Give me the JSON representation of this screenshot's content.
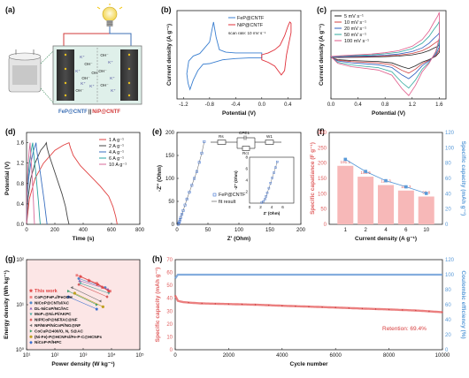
{
  "panels": {
    "a": {
      "label": "(a)",
      "ion_cation": "K⁺",
      "ion_anion": "OH⁻",
      "electrode_left": "FeP@CNTF",
      "electrode_sep": "||",
      "electrode_right": "NiP@CNTF",
      "colors": {
        "left": "#3c6fb5",
        "right": "#d23a3a"
      }
    },
    "b": {
      "label": "(b)",
      "xlabel": "Potential (V)",
      "ylabel": "Current density (A g⁻¹)",
      "annotation": "scan rate: 10 mV s⁻¹",
      "x_ticks": [
        "-1.2",
        "-0.8",
        "-0.4",
        "0.0",
        "0.4"
      ],
      "legend": [
        {
          "name": "FeP@CNTF",
          "color": "#3a7fd0"
        },
        {
          "name": "NiP@CNTF",
          "color": "#e0303a"
        }
      ]
    },
    "c": {
      "label": "(c)",
      "xlabel": "Potential (V)",
      "ylabel": "Current density (A g⁻¹)",
      "x_ticks": [
        "0.0",
        "0.4",
        "0.8",
        "1.2",
        "1.6"
      ],
      "legend": [
        {
          "name": "5 mV s⁻¹",
          "color": "#222222"
        },
        {
          "name": "10 mV s⁻¹",
          "color": "#d04040"
        },
        {
          "name": "20 mV s⁻¹",
          "color": "#2f5fbf"
        },
        {
          "name": "50 mV s⁻¹",
          "color": "#2fa99e"
        },
        {
          "name": "100 mV s⁻¹",
          "color": "#e05a8a"
        }
      ]
    },
    "d": {
      "label": "(d)",
      "xlabel": "Time (s)",
      "ylabel": "Potential (V)",
      "x_ticks": [
        "0",
        "200",
        "400",
        "600",
        "800"
      ],
      "y_ticks": [
        "0.0",
        "0.4",
        "0.8",
        "1.2",
        "1.6"
      ],
      "legend": [
        {
          "name": "1 A g⁻¹",
          "color": "#e04040"
        },
        {
          "name": "2 A g⁻¹",
          "color": "#444444"
        },
        {
          "name": "4 A g⁻¹",
          "color": "#3a6fc0"
        },
        {
          "name": "6 A g⁻¹",
          "color": "#2aa3a0"
        },
        {
          "name": "10 A g⁻¹",
          "color": "#d86a9a"
        }
      ]
    },
    "e": {
      "label": "(e)",
      "xlabel": "Z' (Ohm)",
      "ylabel": "-Z'' (Ohm)",
      "x_ticks": [
        "0",
        "50",
        "100",
        "150",
        "200"
      ],
      "y_ticks": [
        "0",
        "50",
        "100",
        "150",
        "200"
      ],
      "inset_xlabel": "Z' (Ohm)",
      "inset_ylabel": "-Z'' (Ohm)",
      "inset_ticks": [
        "2",
        "4",
        "6",
        "8"
      ],
      "inset_x_ticks": [
        "0",
        "2",
        "4",
        "6"
      ],
      "circuit": [
        "Rs",
        "CPE1",
        "W1",
        "Rct"
      ],
      "legend": [
        {
          "name": "FeP@CNTF",
          "color": "#3a6fd0"
        },
        {
          "name": "fit result",
          "color": "#777777"
        }
      ]
    },
    "f": {
      "label": "(f)",
      "xlabel": "Current density (A g⁻¹)",
      "ylabel_left": "Specific capatiance (F g⁻¹)",
      "ylabel_right": "Specific capacity (mAh g⁻¹)",
      "left_ticks": [
        "0",
        "50",
        "100",
        "150",
        "200",
        "250",
        "300"
      ],
      "right_ticks": [
        "0",
        "20",
        "40",
        "60",
        "80",
        "100",
        "120"
      ]
    },
    "g": {
      "label": "(g)",
      "xlabel": "Power density (W kg⁻¹)",
      "ylabel": "Energy density (Wh kg⁻¹)",
      "x_ticks": [
        "10¹",
        "10²",
        "10³",
        "10⁴",
        "10⁵"
      ],
      "y_ticks": [
        "10⁰",
        "10¹",
        "10²"
      ],
      "this_work": "This work",
      "legend": [
        {
          "name": "CoP@FeP₄//FeOOH",
          "color": "#ee7f7f",
          "shape": "square"
        },
        {
          "name": "NiCoP@CNTs//AC",
          "color": "#4e86c8",
          "shape": "circle"
        },
        {
          "name": "DL-NiCoP/NC//AC",
          "color": "#8a5fb8",
          "shape": "triangle"
        },
        {
          "name": "MoP₂@Ni₂P//AKPC",
          "color": "#48a8a0",
          "shape": "tri-down"
        },
        {
          "name": "NiP/CoP@NF//AC@NF",
          "color": "#d65a5a",
          "shape": "diamond"
        },
        {
          "name": "NF/MnP/NiCoP//NG@NF",
          "color": "#6a6a6a",
          "shape": "tri-left"
        },
        {
          "name": "CoCuP@400/O, N, S@AC",
          "color": "#3b9e6a",
          "shape": "tri-right"
        },
        {
          "name": "(Ni-Fe)-P@HCNFs//Fe-P-C@HCNFs",
          "color": "#c0a020",
          "shape": "hexagon"
        },
        {
          "name": "NiCoP-P//HPC",
          "color": "#3a6fd0",
          "shape": "pentagon"
        }
      ]
    },
    "h": {
      "label": "(h)",
      "xlabel": "Cycle number",
      "ylabel_left": "Specific capacity (mAh g⁻¹)",
      "ylabel_right": "Coulombic efficiency (%)",
      "x_ticks": [
        "0",
        "2000",
        "4000",
        "6000",
        "8000",
        "10000"
      ],
      "left_ticks": [
        "0",
        "10",
        "20",
        "30",
        "40",
        "50",
        "60",
        "70"
      ],
      "right_ticks": [
        "0",
        "20",
        "40",
        "60",
        "80",
        "100",
        "120"
      ],
      "retention": "Retention: 69.4%"
    }
  },
  "chart_data": [
    {
      "panel": "b",
      "type": "line",
      "xlabel": "Potential (V)",
      "ylabel": "Current density (A g⁻¹)",
      "xlim": [
        -1.3,
        0.6
      ],
      "ylim": [
        -70,
        70
      ],
      "series": [
        {
          "name": "FeP@CNTF",
          "color": "#3a7fd0",
          "x": [
            -1.15,
            -1.12,
            -1.05,
            -0.95,
            -0.8,
            -0.74,
            -0.7,
            -0.65,
            -0.55,
            -0.4,
            -0.2,
            0.0,
            0.0,
            -0.2,
            -0.4,
            -0.6,
            -0.8,
            -0.9,
            -0.98,
            -1.05,
            -1.1,
            -1.13,
            -1.15
          ],
          "y": [
            -30,
            -10,
            -2,
            2,
            20,
            52,
            28,
            8,
            4,
            3,
            3,
            3,
            -5,
            -5,
            -6,
            -8,
            -14,
            -15,
            -25,
            -40,
            -55,
            -45,
            -30
          ]
        },
        {
          "name": "NiP@CNTF",
          "color": "#e0303a",
          "x": [
            0.0,
            0.1,
            0.2,
            0.28,
            0.35,
            0.4,
            0.43,
            0.45,
            0.45,
            0.42,
            0.38,
            0.35,
            0.3,
            0.25,
            0.2,
            0.1,
            0.0,
            0.0
          ],
          "y": [
            0,
            3,
            8,
            15,
            30,
            45,
            52,
            50,
            35,
            20,
            0,
            -25,
            -32,
            -25,
            -18,
            -12,
            -8,
            0
          ]
        }
      ]
    },
    {
      "panel": "c",
      "type": "line",
      "xlabel": "Potential (V)",
      "ylabel": "Current density (A g⁻¹)",
      "xlim": [
        0.0,
        1.7
      ],
      "ylim": [
        -12,
        14
      ],
      "series": [
        {
          "name": "5 mV s⁻¹",
          "color": "#222222",
          "scale": 0.28
        },
        {
          "name": "10 mV s⁻¹",
          "color": "#d04040",
          "scale": 0.4
        },
        {
          "name": "20 mV s⁻¹",
          "color": "#2f5fbf",
          "scale": 0.55
        },
        {
          "name": "50 mV s⁻¹",
          "color": "#2fa99e",
          "scale": 0.8
        },
        {
          "name": "100 mV s⁻¹",
          "color": "#e05a8a",
          "scale": 1.0
        }
      ],
      "base_x": [
        0.0,
        0.2,
        0.4,
        0.6,
        0.8,
        1.0,
        1.2,
        1.35,
        1.45,
        1.52,
        1.58,
        1.6,
        1.6,
        1.55,
        1.45,
        1.35,
        1.25,
        1.15,
        1.05,
        0.9,
        0.7,
        0.5,
        0.3,
        0.1,
        0.0
      ],
      "base_y": [
        0.5,
        0.8,
        1.0,
        1.2,
        1.6,
        2.2,
        3.5,
        5.5,
        8,
        10.5,
        12.5,
        13.5,
        6,
        2,
        -1.5,
        -4,
        -8,
        -11,
        -9,
        -5,
        -3.5,
        -3,
        -2.5,
        -1.5,
        0.5
      ]
    },
    {
      "panel": "d",
      "type": "line",
      "xlabel": "Time (s)",
      "ylabel": "Potential (V)",
      "xlim": [
        0,
        800
      ],
      "ylim": [
        0.0,
        1.8
      ],
      "series": [
        {
          "name": "1 A g⁻¹",
          "color": "#e04040",
          "x": [
            0,
            20,
            60,
            120,
            200,
            260,
            300,
            310,
            330,
            380,
            450,
            520,
            580,
            610,
            630,
            640
          ],
          "y": [
            0.0,
            0.5,
            0.9,
            1.2,
            1.45,
            1.55,
            1.6,
            1.5,
            1.35,
            1.15,
            0.95,
            0.75,
            0.55,
            0.35,
            0.15,
            0.0
          ]
        },
        {
          "name": "2 A g⁻¹",
          "color": "#444444",
          "x": [
            0,
            10,
            30,
            60,
            100,
            130,
            140,
            145,
            160,
            190,
            220,
            250,
            275,
            290,
            300
          ],
          "y": [
            0.0,
            0.5,
            0.9,
            1.2,
            1.45,
            1.55,
            1.6,
            1.5,
            1.35,
            1.1,
            0.85,
            0.6,
            0.35,
            0.12,
            0.0
          ]
        },
        {
          "name": "4 A g⁻¹",
          "color": "#3a6fc0",
          "x": [
            0,
            5,
            15,
            30,
            50,
            62,
            67,
            70,
            80,
            95,
            110,
            125,
            138,
            145
          ],
          "y": [
            0.0,
            0.5,
            0.9,
            1.2,
            1.45,
            1.55,
            1.6,
            1.5,
            1.3,
            1.05,
            0.75,
            0.45,
            0.15,
            0.0
          ]
        },
        {
          "name": "6 A g⁻¹",
          "color": "#2aa3a0",
          "x": [
            0,
            4,
            10,
            20,
            33,
            40,
            44,
            46,
            54,
            64,
            74,
            84,
            92,
            97
          ],
          "y": [
            0.0,
            0.5,
            0.9,
            1.2,
            1.45,
            1.55,
            1.6,
            1.5,
            1.3,
            1.05,
            0.75,
            0.45,
            0.15,
            0.0
          ]
        },
        {
          "name": "10 A g⁻¹",
          "color": "#d86a9a",
          "x": [
            0,
            2,
            6,
            12,
            19,
            23,
            25,
            26,
            31,
            37,
            43,
            49,
            53,
            56
          ],
          "y": [
            0.0,
            0.5,
            0.9,
            1.2,
            1.45,
            1.55,
            1.6,
            1.5,
            1.3,
            1.05,
            0.75,
            0.45,
            0.15,
            0.0
          ]
        }
      ]
    },
    {
      "panel": "e",
      "type": "scatter",
      "xlabel": "Z' (Ohm)",
      "ylabel": "-Z'' (Ohm)",
      "xlim": [
        0,
        200
      ],
      "ylim": [
        0,
        200
      ],
      "series": [
        {
          "name": "FeP@CNTF",
          "color": "#3a6fd0",
          "x": [
            2,
            3,
            4,
            5,
            6,
            8,
            10,
            13,
            16,
            20,
            24,
            28,
            32,
            36,
            40,
            44
          ],
          "y": [
            0,
            3,
            6,
            10,
            15,
            22,
            30,
            42,
            55,
            70,
            85,
            100,
            115,
            135,
            155,
            180
          ]
        },
        {
          "name": "fit result",
          "color": "#777777",
          "x": [
            2,
            3,
            4,
            5,
            6,
            8,
            10,
            13,
            16,
            20,
            24,
            28,
            32,
            36,
            40,
            44
          ],
          "y": [
            0,
            3,
            6,
            10,
            15,
            22,
            30,
            42,
            55,
            70,
            85,
            100,
            115,
            135,
            155,
            180
          ]
        }
      ],
      "inset": {
        "xlim": [
          0,
          8
        ],
        "ylim": [
          0,
          8
        ],
        "x": [
          2.2,
          2.5,
          2.8,
          3.0,
          3.2,
          3.5,
          3.8,
          4.1,
          4.4,
          4.7,
          5.0
        ],
        "y": [
          0.1,
          0.3,
          0.7,
          1.2,
          1.8,
          2.6,
          3.5,
          4.4,
          5.3,
          6.2,
          7.2
        ]
      }
    },
    {
      "panel": "f",
      "type": "bar",
      "xlabel": "Current density (A g⁻¹)",
      "ylabel": "Specific capatiance (F g⁻¹)",
      "y2label": "Specific capacity (mAh g⁻¹)",
      "categories": [
        "1",
        "2",
        "4",
        "6",
        "10"
      ],
      "values": [
        191.1,
        155.5,
        128.3,
        110.3,
        90.8
      ],
      "ylim": [
        0,
        300
      ],
      "y2lim": [
        0,
        120
      ],
      "capacity_values": [
        84.9,
        69.1,
        57.0,
        49.0,
        40.4
      ]
    },
    {
      "panel": "g",
      "type": "scatter",
      "xlabel": "Power density (W kg⁻¹)",
      "ylabel": "Energy density (Wh kg⁻¹)",
      "xlim_log": [
        10,
        100000
      ],
      "ylim_log": [
        1,
        100
      ],
      "this_work": {
        "x": [
          800,
          1600,
          3200,
          4800,
          8000
        ],
        "y": [
          42.5,
          34.6,
          28.5,
          24.5,
          20.2
        ]
      },
      "series": [
        {
          "name": "CoP@FeP₄//FeOOH",
          "x": [
            600,
            3000,
            9000
          ],
          "y": [
            45,
            30,
            20
          ]
        },
        {
          "name": "NiCoP@CNTs//AC",
          "x": [
            700,
            6000
          ],
          "y": [
            38,
            24
          ]
        },
        {
          "name": "DL-NiCoP/NC//AC",
          "x": [
            750,
            7500
          ],
          "y": [
            34,
            22
          ]
        },
        {
          "name": "MoP₂@Ni₂P//AKPC",
          "x": [
            800,
            8000
          ],
          "y": [
            30,
            18
          ]
        },
        {
          "name": "NiP/CoP@NF//AC@NF",
          "x": [
            700,
            7000
          ],
          "y": [
            28,
            15
          ]
        },
        {
          "name": "NF/MnP/NiCoP//NG@NF",
          "x": [
            400,
            4000
          ],
          "y": [
            24,
            12
          ]
        },
        {
          "name": "CoCuP@400/O, N, S@AC",
          "x": [
            300,
            3000
          ],
          "y": [
            20,
            10
          ]
        },
        {
          "name": "(Ni-Fe)-P@HCNFs//Fe-P-C@HCNFs",
          "x": [
            500,
            5000
          ],
          "y": [
            18,
            9
          ]
        },
        {
          "name": "NiCoP-P//HPC",
          "x": [
            300,
            3000
          ],
          "y": [
            15,
            8
          ]
        }
      ]
    },
    {
      "panel": "h",
      "type": "scatter",
      "xlabel": "Cycle number",
      "ylabel": "Specific capacity (mAh g⁻¹)",
      "y2label": "Coulombic efficiency (%)",
      "xlim": [
        0,
        10000
      ],
      "ylim": [
        0,
        70
      ],
      "y2lim": [
        0,
        120
      ],
      "capacity": {
        "x": [
          0,
          100,
          300,
          600,
          1000,
          2000,
          3000,
          4000,
          5000,
          6000,
          7000,
          8000,
          9000,
          10000
        ],
        "y": [
          42,
          38,
          37,
          36.5,
          36,
          35.5,
          35,
          34.2,
          33.5,
          32.8,
          32,
          31.3,
          30.5,
          29.2
        ]
      },
      "efficiency": {
        "x": [
          0,
          100,
          500,
          10000
        ],
        "y": [
          95,
          100,
          100,
          100
        ]
      }
    }
  ]
}
